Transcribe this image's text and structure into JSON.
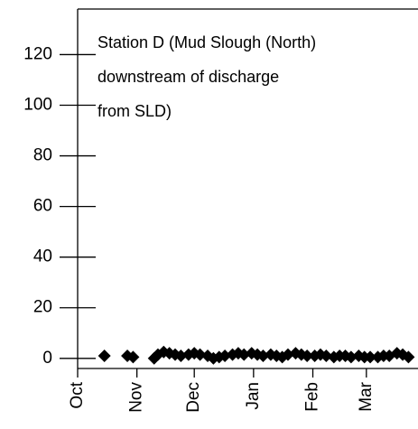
{
  "chart_data": {
    "type": "scatter",
    "annotation": [
      "Station D (Mud Slough (North)",
      "downstream of discharge",
      "from SLD)"
    ],
    "x": [
      14,
      26,
      29,
      40,
      42,
      45,
      48,
      51,
      54,
      58,
      61,
      64,
      68,
      71,
      74,
      77,
      81,
      84,
      87,
      91,
      94,
      97,
      101,
      104,
      107,
      110,
      114,
      117,
      120,
      124,
      127,
      130,
      134,
      137,
      140,
      143,
      147,
      150,
      153,
      157,
      160,
      163,
      167,
      170,
      173
    ],
    "series": [
      {
        "color": "#000000",
        "values": [
          1,
          1,
          0.5,
          0,
          1.5,
          2.5,
          2,
          1.5,
          1,
          1.5,
          2,
          1.5,
          1,
          0,
          0.5,
          1,
          1.5,
          2,
          1.5,
          2,
          1.5,
          1,
          1.5,
          1,
          0.5,
          1.5,
          2,
          1.5,
          1,
          1,
          1.5,
          1,
          0.5,
          1,
          1,
          0.5,
          1,
          0.5,
          0.5,
          0.5,
          1,
          1,
          2,
          1.5,
          0.5
        ]
      }
    ],
    "xlim": [
      0,
      178
    ],
    "xticks": [
      {
        "value": 0,
        "label": "Oct"
      },
      {
        "value": 31,
        "label": "Nov"
      },
      {
        "value": 61,
        "label": "Dec"
      },
      {
        "value": 92,
        "label": "Jan"
      },
      {
        "value": 123,
        "label": "Feb"
      },
      {
        "value": 151,
        "label": "Mar"
      }
    ],
    "ylim": [
      -4,
      138
    ],
    "yticks": [
      0,
      20,
      40,
      60,
      80,
      100,
      120
    ]
  }
}
